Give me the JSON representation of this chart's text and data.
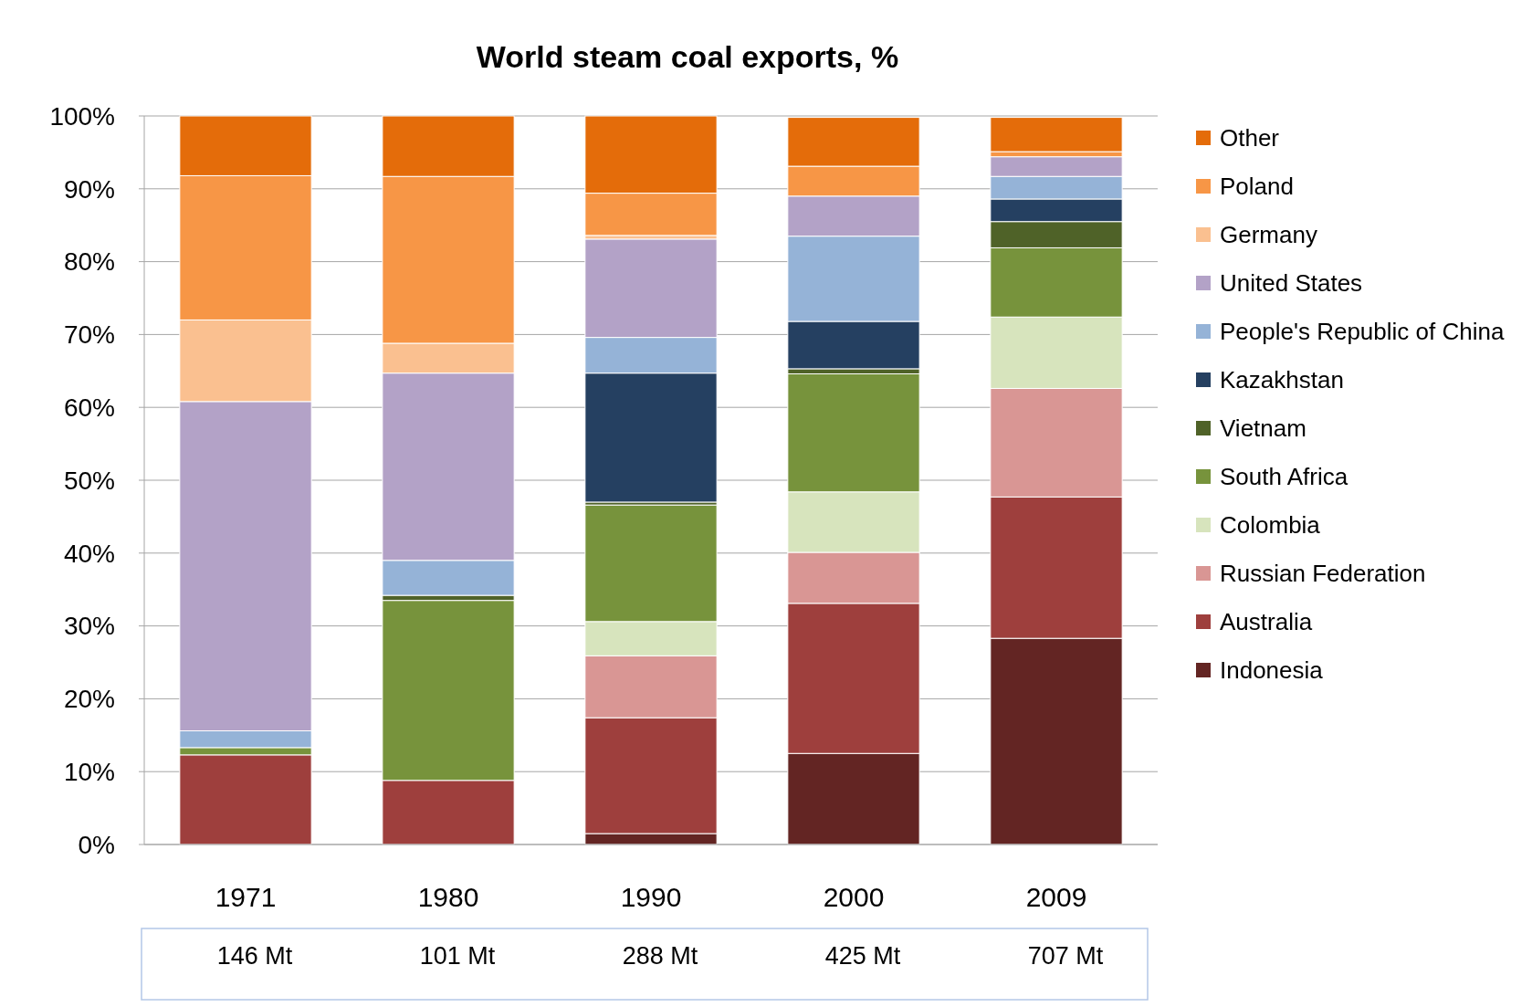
{
  "chart_data": {
    "type": "bar",
    "title": "World steam coal exports, %",
    "stacked": true,
    "categories": [
      "1971",
      "1980",
      "1990",
      "2000",
      "2009"
    ],
    "ylim": [
      0,
      100
    ],
    "yticks": [
      {
        "value": 0,
        "label": "0%"
      },
      {
        "value": 10,
        "label": "10%"
      },
      {
        "value": 20,
        "label": "20%"
      },
      {
        "value": 30,
        "label": "30%"
      },
      {
        "value": 40,
        "label": "40%"
      },
      {
        "value": 50,
        "label": "50%"
      },
      {
        "value": 60,
        "label": "60%"
      },
      {
        "value": 70,
        "label": "70%"
      },
      {
        "value": 80,
        "label": "80%"
      },
      {
        "value": 90,
        "label": "90%"
      },
      {
        "value": 100,
        "label": "100%"
      }
    ],
    "grid": "y",
    "legend": "right",
    "series": [
      {
        "name": "Indonesia",
        "color": "#632523",
        "values": [
          null,
          null,
          1.5,
          12.5,
          28.3
        ]
      },
      {
        "name": "Australia",
        "color": "#9e3f3d",
        "values": [
          12.3,
          8.8,
          15.9,
          20.6,
          19.4
        ]
      },
      {
        "name": "Russian Federation",
        "color": "#d99694",
        "values": [
          null,
          null,
          8.5,
          7,
          14.9
        ]
      },
      {
        "name": "Colombia",
        "color": "#d7e4bd",
        "values": [
          null,
          null,
          4.7,
          8.3,
          9.8
        ]
      },
      {
        "name": "South Africa",
        "color": "#77933c",
        "values": [
          1,
          24.7,
          16,
          16.2,
          9.5
        ]
      },
      {
        "name": "Vietnam",
        "color": "#4f6228",
        "values": [
          null,
          0.7,
          0.4,
          0.7,
          3.6
        ]
      },
      {
        "name": "Kazakhstan",
        "color": "#254061",
        "values": [
          null,
          null,
          17.7,
          6.5,
          3.1
        ]
      },
      {
        "name": "People's Republic of China",
        "color": "#95b3d7",
        "values": [
          2.3,
          4.8,
          4.9,
          11.7,
          3.1
        ]
      },
      {
        "name": "United States",
        "color": "#b3a2c7",
        "values": [
          45.2,
          25.7,
          13.5,
          5.5,
          2.7
        ]
      },
      {
        "name": "Germany",
        "color": "#fac090",
        "values": [
          11.2,
          4.1,
          0.5,
          null,
          null
        ]
      },
      {
        "name": "Poland",
        "color": "#f79646",
        "values": [
          19.8,
          22.9,
          5.8,
          4.1,
          0.7
        ]
      },
      {
        "name": "Other",
        "color": "#e46c0a",
        "values": [
          8.2,
          8.3,
          10.6,
          6.7,
          4.7
        ]
      }
    ],
    "annotations": [
      "146 Mt",
      "101 Mt",
      "288 Mt",
      "425 Mt",
      "707 Mt"
    ]
  }
}
